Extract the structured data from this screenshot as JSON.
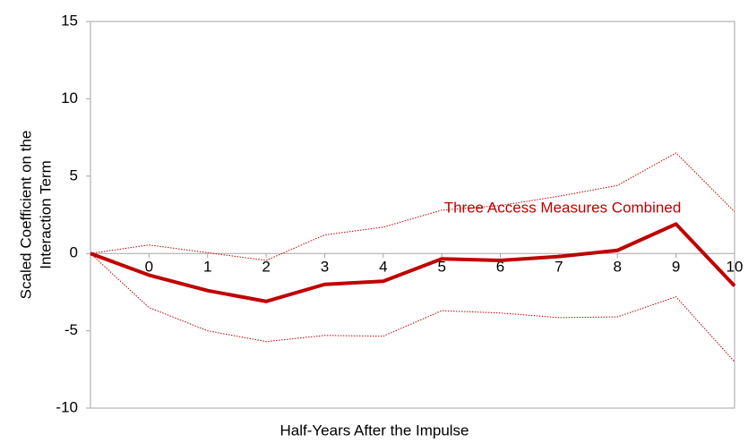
{
  "chart_data": {
    "type": "line",
    "x_label": "Half-Years After the Impulse",
    "y_label": [
      "Scaled Coefficient on the",
      "Interaction Term"
    ],
    "annotation": "Three Access Measures Combined",
    "x": [
      -1,
      0,
      1,
      2,
      3,
      4,
      5,
      6,
      7,
      8,
      9,
      10
    ],
    "xlim": [
      -1,
      10
    ],
    "xticks": [
      0,
      1,
      2,
      3,
      4,
      5,
      6,
      7,
      8,
      9,
      10
    ],
    "ylim": [
      -10,
      15
    ],
    "yticks": [
      -10,
      -5,
      0,
      5,
      10,
      15
    ],
    "series": [
      {
        "color": "#c00000",
        "style": "dotted",
        "values": [
          0,
          0.55,
          0.05,
          -0.45,
          1.2,
          1.7,
          2.8,
          3.1,
          3.7,
          4.4,
          6.5,
          2.7
        ]
      },
      {
        "color": "#c00000",
        "style": "dotted",
        "values": [
          0,
          -3.5,
          -5.0,
          -5.7,
          -5.3,
          -5.35,
          -3.7,
          -3.85,
          -4.15,
          -4.1,
          -2.8,
          -7.0
        ]
      },
      {
        "color": "#c00000",
        "style": "solid",
        "values": [
          0,
          -1.4,
          -2.4,
          -3.1,
          -2.0,
          -1.8,
          -0.35,
          -0.45,
          -0.2,
          0.2,
          1.9,
          -2.1
        ]
      }
    ]
  }
}
